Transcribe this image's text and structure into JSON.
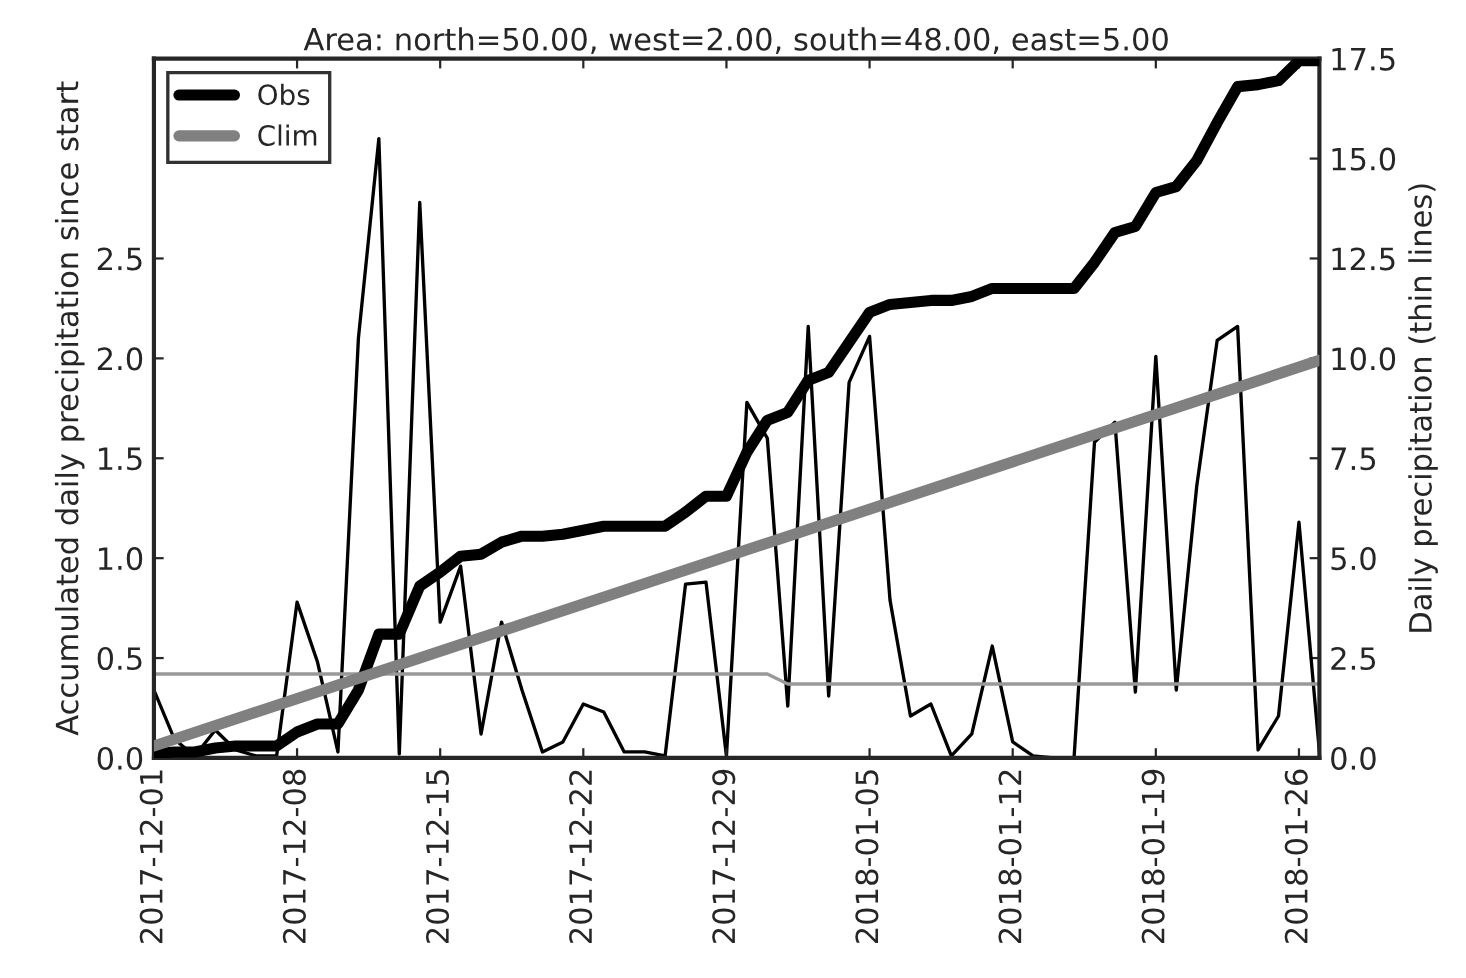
{
  "chart_data": {
    "type": "line",
    "title": "Area: north=50.00, west=2.00, south=48.00, east=5.00",
    "ylabel": "Accumulated daily precipitation since start",
    "y2label": "Daily precipitation (thin lines)",
    "x": [
      "2017-12-01",
      "2017-12-02",
      "2017-12-03",
      "2017-12-04",
      "2017-12-05",
      "2017-12-06",
      "2017-12-07",
      "2017-12-08",
      "2017-12-09",
      "2017-12-10",
      "2017-12-11",
      "2017-12-12",
      "2017-12-13",
      "2017-12-14",
      "2017-12-15",
      "2017-12-16",
      "2017-12-17",
      "2017-12-18",
      "2017-12-19",
      "2017-12-20",
      "2017-12-21",
      "2017-12-22",
      "2017-12-23",
      "2017-12-24",
      "2017-12-25",
      "2017-12-26",
      "2017-12-27",
      "2017-12-28",
      "2017-12-29",
      "2017-12-30",
      "2017-12-31",
      "2018-01-01",
      "2018-01-02",
      "2018-01-03",
      "2018-01-04",
      "2018-01-05",
      "2018-01-06",
      "2018-01-07",
      "2018-01-08",
      "2018-01-09",
      "2018-01-10",
      "2018-01-11",
      "2018-01-12",
      "2018-01-13",
      "2018-01-14",
      "2018-01-15",
      "2018-01-16",
      "2018-01-17",
      "2018-01-18",
      "2018-01-19",
      "2018-01-20",
      "2018-01-21",
      "2018-01-22",
      "2018-01-23",
      "2018-01-24",
      "2018-01-25",
      "2018-01-26",
      "2018-01-27"
    ],
    "series": [
      {
        "name": "Obs",
        "color": "#000000",
        "values": [
          0.02,
          0.03,
          0.03,
          0.05,
          0.06,
          0.06,
          0.06,
          0.13,
          0.17,
          0.17,
          0.34,
          0.62,
          0.62,
          0.86,
          0.93,
          1.01,
          1.02,
          1.08,
          1.11,
          1.11,
          1.12,
          1.14,
          1.16,
          1.16,
          1.16,
          1.16,
          1.23,
          1.31,
          1.31,
          1.53,
          1.69,
          1.73,
          1.89,
          1.93,
          2.08,
          2.23,
          2.27,
          2.28,
          2.29,
          2.29,
          2.31,
          2.35,
          2.35,
          2.35,
          2.35,
          2.35,
          2.48,
          2.63,
          2.66,
          2.83,
          2.86,
          2.99,
          3.18,
          3.36,
          3.37,
          3.39,
          3.49,
          3.49
        ]
      },
      {
        "name": "Clim",
        "color": "#808080",
        "x": [
          "2017-12-01",
          "2018-01-27"
        ],
        "values": [
          0.06,
          1.99
        ]
      },
      {
        "color": "#000000",
        "axis": "y2",
        "values": [
          1.7,
          0.47,
          0.05,
          0.7,
          0.2,
          0.05,
          0.05,
          3.9,
          2.4,
          0.15,
          10.5,
          15.5,
          0.1,
          13.9,
          3.4,
          4.8,
          0.6,
          3.4,
          1.7,
          0.15,
          0.4,
          1.35,
          1.15,
          0.15,
          0.15,
          0.05,
          4.35,
          4.4,
          0.05,
          8.9,
          8.0,
          1.3,
          10.8,
          1.55,
          9.4,
          10.55,
          3.95,
          1.05,
          1.35,
          0.05,
          0.6,
          2.8,
          0.4,
          0.05,
          0.0,
          0.0,
          7.9,
          8.4,
          1.65,
          10.05,
          1.7,
          6.8,
          10.45,
          10.8,
          0.2,
          1.05,
          5.9,
          0.15
        ]
      },
      {
        "color": "#999999",
        "axis": "y2",
        "x": [
          "2017-12-01",
          "2017-12-31",
          "2018-01-01",
          "2018-01-27"
        ],
        "values": [
          2.1,
          2.1,
          1.85,
          1.85
        ]
      }
    ],
    "xlim": [
      "2017-12-01",
      "2018-01-27"
    ],
    "xticks": [
      "2017-12-01",
      "2017-12-08",
      "2017-12-15",
      "2017-12-22",
      "2017-12-29",
      "2018-01-05",
      "2018-01-12",
      "2018-01-19",
      "2018-01-26"
    ],
    "ylim": [
      0,
      3.5
    ],
    "yticks": [
      {
        "value": 0,
        "label": "0.0"
      },
      {
        "value": 0.5,
        "label": "0.5"
      },
      {
        "value": 1,
        "label": "1.0"
      },
      {
        "value": 1.5,
        "label": "1.5"
      },
      {
        "value": 2,
        "label": "2.0"
      },
      {
        "value": 2.5,
        "label": "2.5"
      }
    ],
    "y2lim": [
      0,
      17.5
    ],
    "y2ticks": [
      {
        "value": 0,
        "label": "0.0"
      },
      {
        "value": 2.5,
        "label": "2.5"
      },
      {
        "value": 5,
        "label": "5.0"
      },
      {
        "value": 7.5,
        "label": "7.5"
      },
      {
        "value": 10,
        "label": "10.0"
      },
      {
        "value": 12.5,
        "label": "12.5"
      },
      {
        "value": 15,
        "label": "15.0"
      },
      {
        "value": 17.5,
        "label": "17.5"
      }
    ],
    "grid": false,
    "legend": "top left",
    "line_style": "solid"
  }
}
